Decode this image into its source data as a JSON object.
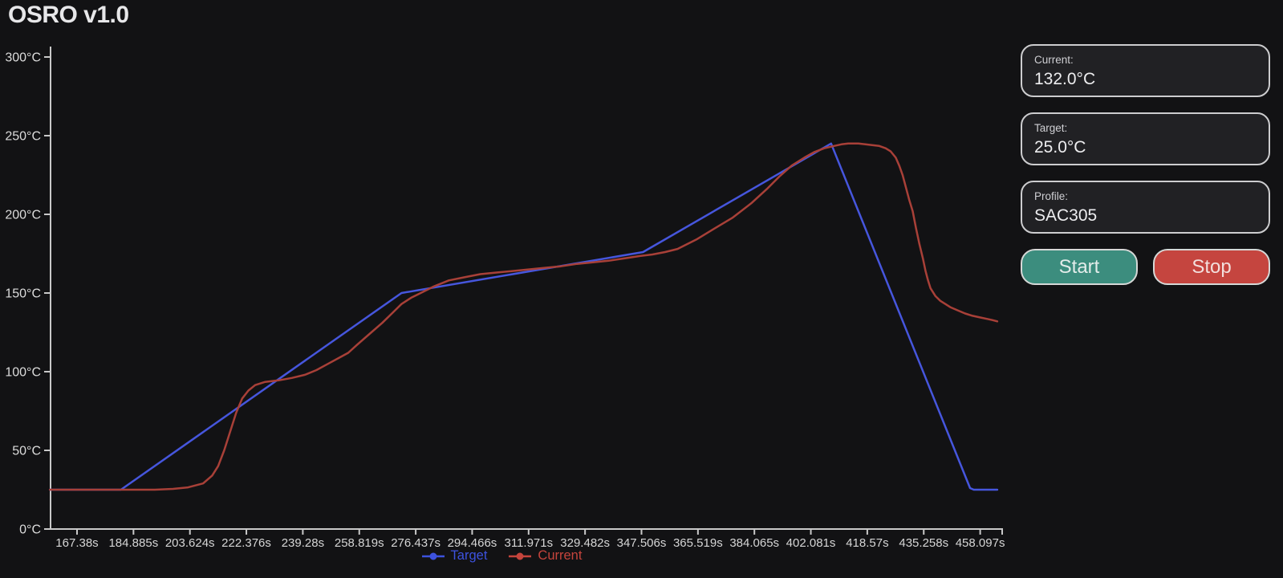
{
  "app": {
    "title": "OSRO v1.0"
  },
  "panel": {
    "cards": [
      {
        "label": "Current:",
        "value": "132.0°C"
      },
      {
        "label": "Target:",
        "value": "25.0°C"
      },
      {
        "label": "Profile:",
        "value": "SAC305"
      }
    ],
    "buttons": {
      "start": "Start",
      "stop": "Stop"
    },
    "colors": {
      "start_bg": "#3c8d7e",
      "stop_bg": "#c5453f"
    }
  },
  "chart_data": {
    "type": "line",
    "title": "",
    "xlabel": "",
    "ylabel": "",
    "x_unit": "s",
    "y_unit": "°C",
    "ylim": [
      0,
      300
    ],
    "grid": false,
    "legend_position": "bottom",
    "y_ticks": [
      0,
      50,
      100,
      150,
      200,
      250,
      300
    ],
    "x_tick_labels": [
      "167.38s",
      "184.885s",
      "203.624s",
      "222.376s",
      "239.28s",
      "258.819s",
      "276.437s",
      "294.466s",
      "311.971s",
      "329.482s",
      "347.506s",
      "365.519s",
      "384.065s",
      "402.081s",
      "418.57s",
      "435.258s",
      "458.097s"
    ],
    "x_tick_times": [
      167.38,
      184.885,
      203.624,
      222.376,
      239.28,
      258.819,
      276.437,
      294.466,
      311.971,
      329.482,
      347.506,
      365.519,
      384.065,
      402.081,
      418.57,
      435.258,
      458.097
    ],
    "legend": [
      {
        "name": "Target",
        "color": "#3d52de"
      },
      {
        "name": "Current",
        "color": "#c5443c"
      }
    ],
    "series": [
      {
        "name": "Target",
        "color": "#4656dd",
        "points": [
          [
            159,
            25
          ],
          [
            181,
            25
          ],
          [
            272,
            150
          ],
          [
            348,
            176
          ],
          [
            408,
            245
          ],
          [
            454,
            26
          ],
          [
            455.5,
            25
          ],
          [
            465,
            25
          ]
        ]
      },
      {
        "name": "Current",
        "color": "#a84038",
        "points": [
          [
            159,
            25
          ],
          [
            172,
            25
          ],
          [
            185,
            25
          ],
          [
            192,
            25
          ],
          [
            198,
            25.5
          ],
          [
            203,
            26.5
          ],
          [
            208,
            29
          ],
          [
            211,
            34
          ],
          [
            213,
            40
          ],
          [
            215,
            50
          ],
          [
            217,
            62
          ],
          [
            219,
            74
          ],
          [
            221,
            83
          ],
          [
            223,
            88
          ],
          [
            225,
            91.5
          ],
          [
            228,
            93.5
          ],
          [
            232,
            94.5
          ],
          [
            236,
            96
          ],
          [
            240,
            98
          ],
          [
            244,
            101
          ],
          [
            248,
            105
          ],
          [
            252,
            109
          ],
          [
            255,
            112
          ],
          [
            258,
            117
          ],
          [
            262,
            124
          ],
          [
            266,
            131
          ],
          [
            269,
            137
          ],
          [
            272,
            143
          ],
          [
            275,
            147
          ],
          [
            277,
            149
          ],
          [
            282,
            154
          ],
          [
            287,
            158
          ],
          [
            292,
            160
          ],
          [
            297,
            162
          ],
          [
            302,
            163
          ],
          [
            307,
            164
          ],
          [
            312,
            165
          ],
          [
            317,
            166
          ],
          [
            322,
            167
          ],
          [
            327,
            168.5
          ],
          [
            332,
            169.5
          ],
          [
            337,
            170.5
          ],
          [
            342,
            172
          ],
          [
            347,
            173.5
          ],
          [
            351,
            174.5
          ],
          [
            355,
            176
          ],
          [
            359,
            178
          ],
          [
            365,
            184
          ],
          [
            371,
            191
          ],
          [
            377,
            198
          ],
          [
            383,
            207
          ],
          [
            388,
            216
          ],
          [
            392,
            224
          ],
          [
            396,
            231
          ],
          [
            400,
            236
          ],
          [
            403,
            239.5
          ],
          [
            406,
            242
          ],
          [
            409,
            243.5
          ],
          [
            411,
            244.5
          ],
          [
            413,
            245
          ],
          [
            416,
            245
          ],
          [
            418,
            244.5
          ],
          [
            420,
            244
          ],
          [
            422,
            243.5
          ],
          [
            424,
            242
          ],
          [
            425.5,
            240
          ],
          [
            427,
            236
          ],
          [
            428,
            231
          ],
          [
            429,
            225
          ],
          [
            430,
            217
          ],
          [
            431,
            209
          ],
          [
            432,
            202
          ],
          [
            433,
            191
          ],
          [
            434,
            181
          ],
          [
            435,
            172
          ],
          [
            436,
            164
          ],
          [
            437,
            158
          ],
          [
            438,
            153
          ],
          [
            440,
            148
          ],
          [
            442,
            145
          ],
          [
            444,
            143
          ],
          [
            446,
            141
          ],
          [
            449,
            139
          ],
          [
            452,
            137
          ],
          [
            455,
            135.5
          ],
          [
            458,
            134.5
          ],
          [
            461,
            133.5
          ],
          [
            463,
            132.8
          ],
          [
            465,
            132
          ]
        ]
      }
    ]
  }
}
